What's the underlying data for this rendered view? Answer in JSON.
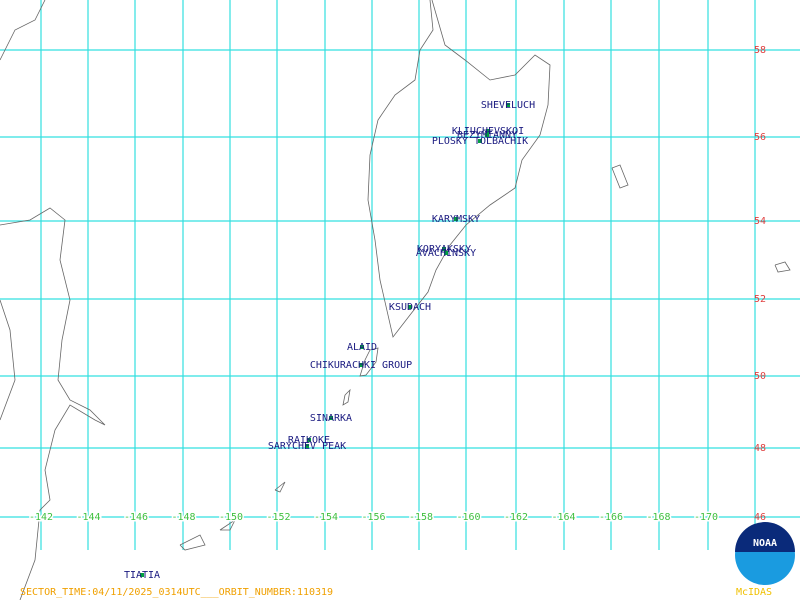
{
  "map": {
    "lat_labels": [
      "58",
      "56",
      "54",
      "52",
      "50",
      "48",
      "46"
    ],
    "lon_labels": [
      "-142",
      "-144",
      "-146",
      "-148",
      "-150",
      "-152",
      "-154",
      "-156",
      "-158",
      "-160",
      "-162",
      "-164",
      "-166",
      "-168",
      "-170"
    ],
    "volcanoes": [
      "SHEVELUCH",
      "KLIUCHEVSKOI",
      "BEZYMIANNY",
      "PLOSKY TOLBACHIK",
      "KARYMSKY",
      "KORYAKSKY",
      "AVACHINSKY",
      "KSUDACH",
      "ALAID",
      "CHIKURACHKI GROUP",
      "SINARKA",
      "RAIKOKE",
      "SARYCHEV PEAK",
      "TIATIA"
    ],
    "footer": "SECTOR_TIME:04/11/2025_0314UTC___ORBIT_NUMBER:110319",
    "logo": "NOAA",
    "software": "McIDAS"
  }
}
